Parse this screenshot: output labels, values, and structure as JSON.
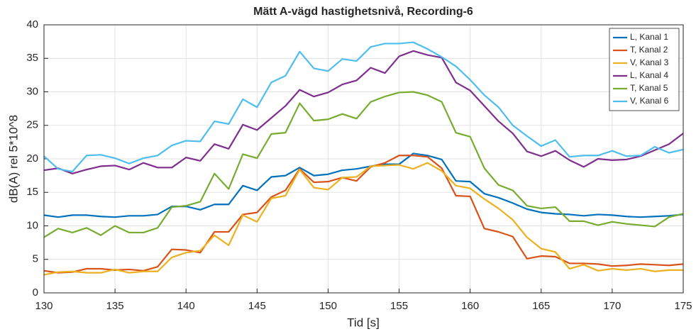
{
  "chart_data": {
    "type": "line",
    "title": "Mätt A-vägd hastighetsnivå, Recording-6",
    "x_label": "Tid [s]",
    "y_label": "dB(A) rel 5*10^8",
    "x": [
      130,
      131,
      132,
      133,
      134,
      135,
      136,
      137,
      138,
      139,
      140,
      141,
      142,
      143,
      144,
      145,
      146,
      147,
      148,
      149,
      150,
      151,
      152,
      153,
      154,
      155,
      156,
      157,
      158,
      159,
      160,
      161,
      162,
      163,
      164,
      165,
      166,
      167,
      168,
      169,
      170,
      171,
      172,
      173,
      174,
      175
    ],
    "xlim": [
      130,
      175
    ],
    "xticks": [
      130,
      135,
      140,
      145,
      150,
      155,
      160,
      165,
      170,
      175
    ],
    "ylim": [
      0,
      40
    ],
    "yticks": [
      0,
      5,
      10,
      15,
      20,
      25,
      30,
      35,
      40
    ],
    "grid": true,
    "legend": "upper right",
    "series": [
      {
        "name": "L, Kanal 1",
        "color": "#0072BD",
        "values": [
          11.6,
          11.3,
          11.6,
          11.6,
          11.4,
          11.3,
          11.5,
          11.5,
          11.7,
          12.9,
          12.9,
          12.4,
          13.2,
          13.2,
          16.0,
          15.3,
          17.3,
          17.5,
          18.7,
          17.5,
          17.7,
          18.3,
          18.5,
          18.9,
          19.2,
          19.2,
          20.8,
          20.5,
          19.9,
          16.7,
          16.6,
          14.8,
          14.2,
          13.4,
          12.5,
          12.0,
          11.8,
          11.7,
          11.5,
          11.7,
          11.6,
          11.4,
          11.3,
          11.4,
          11.5,
          11.7
        ]
      },
      {
        "name": "T, Kanal 2",
        "color": "#D95319",
        "values": [
          3.3,
          3.0,
          3.1,
          3.6,
          3.6,
          3.4,
          3.5,
          3.3,
          3.9,
          6.5,
          6.4,
          6.0,
          9.1,
          9.1,
          11.7,
          12.0,
          14.3,
          15.3,
          18.5,
          16.5,
          16.6,
          17.2,
          16.7,
          18.8,
          19.4,
          20.5,
          20.5,
          20.3,
          18.6,
          14.5,
          14.4,
          9.6,
          9.1,
          8.4,
          5.1,
          5.5,
          5.4,
          4.4,
          4.4,
          4.3,
          4.0,
          4.1,
          4.3,
          4.2,
          4.1,
          4.3
        ]
      },
      {
        "name": "V, Kanal 3",
        "color": "#EDB120",
        "values": [
          2.7,
          3.1,
          3.2,
          3.0,
          3.0,
          3.5,
          3.0,
          3.2,
          3.2,
          5.3,
          6.0,
          6.3,
          8.6,
          7.1,
          11.6,
          10.6,
          14.1,
          14.5,
          18.4,
          15.7,
          15.4,
          17.2,
          17.3,
          18.9,
          19.0,
          19.1,
          18.5,
          19.4,
          18.2,
          16.0,
          15.6,
          14.0,
          12.6,
          10.9,
          8.3,
          6.6,
          6.1,
          3.6,
          4.2,
          3.3,
          3.6,
          3.4,
          3.6,
          3.2,
          3.4,
          3.4
        ]
      },
      {
        "name": "L, Kanal 4",
        "color": "#7E2F8E",
        "values": [
          18.3,
          18.6,
          17.8,
          18.4,
          18.9,
          19.0,
          18.4,
          19.4,
          18.7,
          18.7,
          20.2,
          19.7,
          22.2,
          21.5,
          25.1,
          24.3,
          26.1,
          27.9,
          30.3,
          29.3,
          29.9,
          31.1,
          31.7,
          33.6,
          32.8,
          35.3,
          36.1,
          35.5,
          35.1,
          31.4,
          30.2,
          27.9,
          25.6,
          23.8,
          21.1,
          20.4,
          21.2,
          19.8,
          18.8,
          20.0,
          19.8,
          19.9,
          20.4,
          21.3,
          22.2,
          23.8
        ]
      },
      {
        "name": "T, Kanal 5",
        "color": "#77AC30",
        "values": [
          8.3,
          9.6,
          9.0,
          9.7,
          8.6,
          10.0,
          9.0,
          9.0,
          9.7,
          12.8,
          13.0,
          13.6,
          17.8,
          15.5,
          20.7,
          20.1,
          23.7,
          23.9,
          28.3,
          25.7,
          25.9,
          26.7,
          26.0,
          28.5,
          29.3,
          29.9,
          30.0,
          29.5,
          28.5,
          23.9,
          23.3,
          18.6,
          16.1,
          15.3,
          13.0,
          12.6,
          12.8,
          10.7,
          10.7,
          10.1,
          10.6,
          10.3,
          10.1,
          9.9,
          11.3,
          11.8
        ]
      },
      {
        "name": "V, Kanal 6",
        "color": "#4DBEEE",
        "values": [
          20.4,
          18.5,
          18.1,
          20.5,
          20.6,
          20.1,
          19.3,
          20.1,
          20.5,
          22.0,
          22.7,
          22.6,
          25.6,
          25.2,
          28.9,
          27.7,
          31.4,
          32.4,
          36.0,
          33.5,
          33.1,
          34.9,
          34.6,
          36.7,
          37.2,
          37.2,
          37.4,
          36.4,
          35.2,
          33.8,
          31.8,
          29.5,
          27.7,
          25.0,
          23.4,
          21.9,
          22.8,
          20.3,
          20.5,
          20.5,
          21.2,
          20.4,
          20.5,
          21.8,
          20.9,
          21.4
        ]
      }
    ]
  }
}
